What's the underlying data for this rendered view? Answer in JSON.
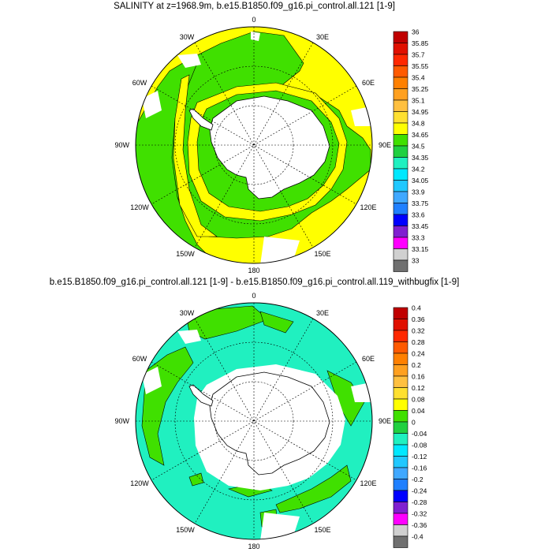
{
  "panels": [
    {
      "title": "SALINITY at z=1968.9m, b.e15.B1850.f09_g16.pi_control.all.121 [1-9]",
      "labels": {
        "top": "0",
        "bottom": "180",
        "left": "90W",
        "right": "90E",
        "ul1": "30W",
        "ul2": "60W",
        "ll1": "120W",
        "ll2": "150W",
        "ur1": "30E",
        "ur2": "60E",
        "lr1": "120E",
        "lr2": "150E"
      },
      "colorbar": {
        "labels": [
          "36",
          "35.85",
          "35.7",
          "35.55",
          "35.4",
          "35.25",
          "35.1",
          "34.95",
          "34.8",
          "34.65",
          "34.5",
          "34.35",
          "34.2",
          "34.05",
          "33.9",
          "33.75",
          "33.6",
          "33.45",
          "33.3",
          "33.15",
          "33"
        ],
        "colors": [
          "#c00000",
          "#e01000",
          "#ff2800",
          "#ff5a00",
          "#ff8000",
          "#ffa020",
          "#ffc040",
          "#ffe030",
          "#ffff00",
          "#40e000",
          "#20d040",
          "#20f0c0",
          "#00e8ff",
          "#20c8ff",
          "#40a8ff",
          "#2080ff",
          "#0000ff",
          "#8020d0",
          "#ff00ff",
          "#d0d0d0",
          "#707070"
        ]
      }
    },
    {
      "title": "b.e15.B1850.f09_g16.pi_control.all.121 [1-9] - b.e15.B1850.f09_g16.pi_control.all.119_withbugfix [1-9]",
      "labels": {
        "top": "0",
        "bottom": "180",
        "left": "90W",
        "right": "90E",
        "ul1": "30W",
        "ul2": "60W",
        "ll1": "120W",
        "ll2": "150W",
        "ur1": "30E",
        "ur2": "60E",
        "lr1": "120E",
        "lr2": "150E"
      },
      "colorbar": {
        "labels": [
          "0.4",
          "0.36",
          "0.32",
          "0.28",
          "0.24",
          "0.2",
          "0.16",
          "0.12",
          "0.08",
          "0.04",
          "0",
          "-0.04",
          "-0.08",
          "-0.12",
          "-0.16",
          "-0.2",
          "-0.24",
          "-0.28",
          "-0.32",
          "-0.36",
          "-0.4"
        ],
        "colors": [
          "#c00000",
          "#e01000",
          "#ff2800",
          "#ff5a00",
          "#ff8000",
          "#ffa020",
          "#ffc040",
          "#ffe030",
          "#ffff00",
          "#40e000",
          "#20d040",
          "#20f0c0",
          "#00e8ff",
          "#20c8ff",
          "#40a8ff",
          "#2080ff",
          "#0000ff",
          "#8020d0",
          "#ff00ff",
          "#d0d0d0",
          "#707070"
        ]
      }
    }
  ],
  "colors": {
    "panel1_ocean_fill": "#ffff00",
    "panel1_band_fill": "#40e000",
    "panel2_ocean_fill": "#20f0c0",
    "panel2_patch_fill": "#40e000",
    "land": "#ffffff",
    "outline": "#000000"
  }
}
